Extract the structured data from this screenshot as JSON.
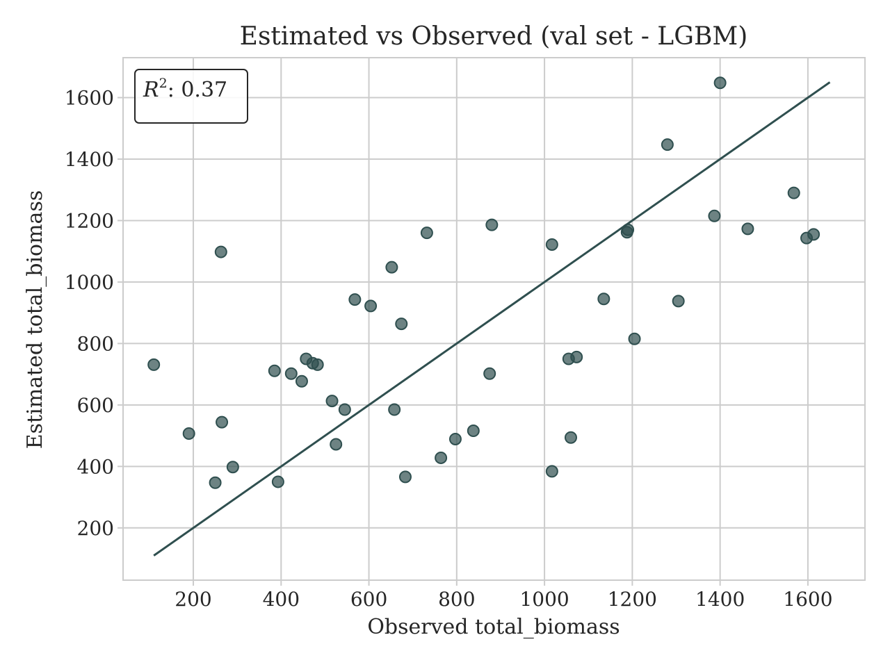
{
  "chart_data": {
    "type": "scatter",
    "title": "Estimated vs Observed (val set - LGBM)",
    "xlabel": "Observed total_biomass",
    "ylabel": "Estimated total_biomass",
    "xlim": [
      40,
      1730
    ],
    "ylim": [
      30,
      1730
    ],
    "xticks": [
      200,
      400,
      600,
      800,
      1000,
      1200,
      1400,
      1600
    ],
    "yticks": [
      200,
      400,
      600,
      800,
      1000,
      1200,
      1400,
      1600
    ],
    "grid": true,
    "annotation": {
      "symbol": "R",
      "exponent": "2",
      "text": ": 0.37",
      "placement": "top-left"
    },
    "identity_line": {
      "from": [
        110,
        110
      ],
      "to": [
        1650,
        1650
      ]
    },
    "point_color": "#2f4f4f",
    "line_color": "#2f4f4f",
    "points": [
      [
        110,
        731
      ],
      [
        190,
        507
      ],
      [
        250,
        347
      ],
      [
        263,
        1098
      ],
      [
        265,
        544
      ],
      [
        290,
        398
      ],
      [
        385,
        711
      ],
      [
        393,
        350
      ],
      [
        423,
        702
      ],
      [
        447,
        677
      ],
      [
        457,
        750
      ],
      [
        472,
        736
      ],
      [
        483,
        731
      ],
      [
        516,
        613
      ],
      [
        525,
        472
      ],
      [
        545,
        585
      ],
      [
        568,
        943
      ],
      [
        604,
        922
      ],
      [
        652,
        1048
      ],
      [
        658,
        585
      ],
      [
        674,
        864
      ],
      [
        683,
        366
      ],
      [
        732,
        1160
      ],
      [
        764,
        428
      ],
      [
        797,
        489
      ],
      [
        838,
        516
      ],
      [
        875,
        702
      ],
      [
        880,
        1186
      ],
      [
        1017,
        1122
      ],
      [
        1017,
        384
      ],
      [
        1055,
        750
      ],
      [
        1060,
        494
      ],
      [
        1073,
        756
      ],
      [
        1135,
        945
      ],
      [
        1188,
        1162
      ],
      [
        1190,
        1170
      ],
      [
        1205,
        815
      ],
      [
        1280,
        1447
      ],
      [
        1305,
        938
      ],
      [
        1387,
        1215
      ],
      [
        1400,
        1648
      ],
      [
        1463,
        1173
      ],
      [
        1568,
        1290
      ],
      [
        1597,
        1143
      ],
      [
        1613,
        1155
      ]
    ]
  }
}
